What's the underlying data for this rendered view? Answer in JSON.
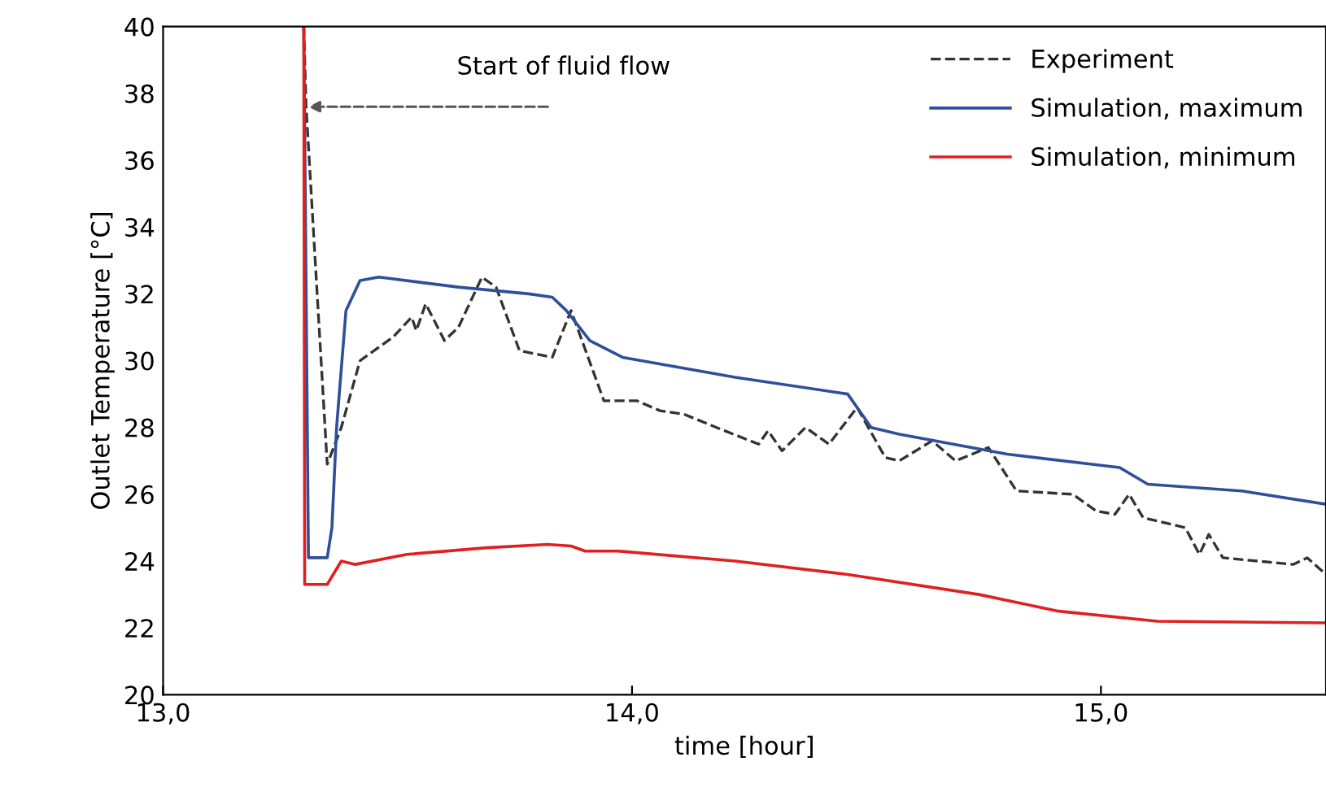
{
  "chart_data": {
    "type": "line",
    "xlabel": "time [hour]",
    "ylabel": "Outlet Temperature [°C]",
    "xlim": [
      13.0,
      15.48
    ],
    "xticks": [
      {
        "value": 13.0,
        "label": "13,0"
      },
      {
        "value": 14.0,
        "label": "14,0"
      },
      {
        "value": 15.0,
        "label": "15,0"
      }
    ],
    "ylim": [
      20,
      40
    ],
    "yticks": [
      20,
      22,
      24,
      26,
      28,
      30,
      32,
      34,
      36,
      38,
      40
    ],
    "grid": false,
    "legend": "top right",
    "annotations": [
      {
        "text": "Start of fluid flow",
        "x": 13.3,
        "y": 37.6
      }
    ],
    "series": [
      {
        "name": "Experiment",
        "color": "#333333",
        "line_style": "dashed",
        "x": [
          13.3,
          13.305,
          13.35,
          13.38,
          13.42,
          13.49,
          13.53,
          13.54,
          13.56,
          13.6,
          13.63,
          13.68,
          13.71,
          13.76,
          13.83,
          13.87,
          13.94,
          14.01,
          14.06,
          14.11,
          14.18,
          14.27,
          14.29,
          14.32,
          14.37,
          14.42,
          14.48,
          14.54,
          14.57,
          14.64,
          14.69,
          14.76,
          14.82,
          14.94,
          14.99,
          15.03,
          15.06,
          15.09,
          15.18,
          15.21,
          15.23,
          15.26,
          15.41,
          15.44,
          15.48
        ],
        "values": [
          40,
          37.6,
          26.9,
          28.0,
          30.0,
          30.7,
          31.3,
          30.9,
          31.7,
          30.6,
          31.0,
          32.5,
          32.2,
          30.3,
          30.1,
          31.5,
          28.8,
          28.8,
          28.5,
          28.4,
          28.0,
          27.5,
          27.9,
          27.3,
          28.0,
          27.5,
          28.6,
          27.1,
          27.0,
          27.6,
          27.0,
          27.4,
          26.1,
          26.0,
          25.5,
          25.4,
          26.0,
          25.3,
          25.0,
          24.2,
          24.8,
          24.1,
          23.9,
          24.1,
          23.6
        ]
      },
      {
        "name": "Simulation, maximum",
        "color": "#2f4f9a",
        "line_style": "solid",
        "x": [
          13.3,
          13.31,
          13.35,
          13.36,
          13.37,
          13.39,
          13.42,
          13.46,
          13.63,
          13.78,
          13.83,
          13.86,
          13.91,
          13.98,
          14.22,
          14.46,
          14.51,
          14.57,
          14.8,
          15.04,
          15.1,
          15.3,
          15.48
        ],
        "values": [
          40,
          24.1,
          24.1,
          25.0,
          28.0,
          31.5,
          32.4,
          32.5,
          32.2,
          32.0,
          31.9,
          31.5,
          30.6,
          30.1,
          29.5,
          29.0,
          28.0,
          27.8,
          27.2,
          26.8,
          26.3,
          26.1,
          25.7
        ]
      },
      {
        "name": "Simulation, minimum",
        "color": "#e02020",
        "line_style": "solid",
        "x": [
          13.3,
          13.302,
          13.35,
          13.38,
          13.41,
          13.52,
          13.69,
          13.82,
          13.87,
          13.9,
          13.97,
          14.22,
          14.46,
          14.74,
          14.91,
          15.12,
          15.48
        ],
        "values": [
          40,
          23.3,
          23.3,
          24.0,
          23.9,
          24.2,
          24.4,
          24.5,
          24.45,
          24.3,
          24.3,
          24.0,
          23.6,
          23.0,
          22.5,
          22.2,
          22.15
        ]
      }
    ]
  }
}
